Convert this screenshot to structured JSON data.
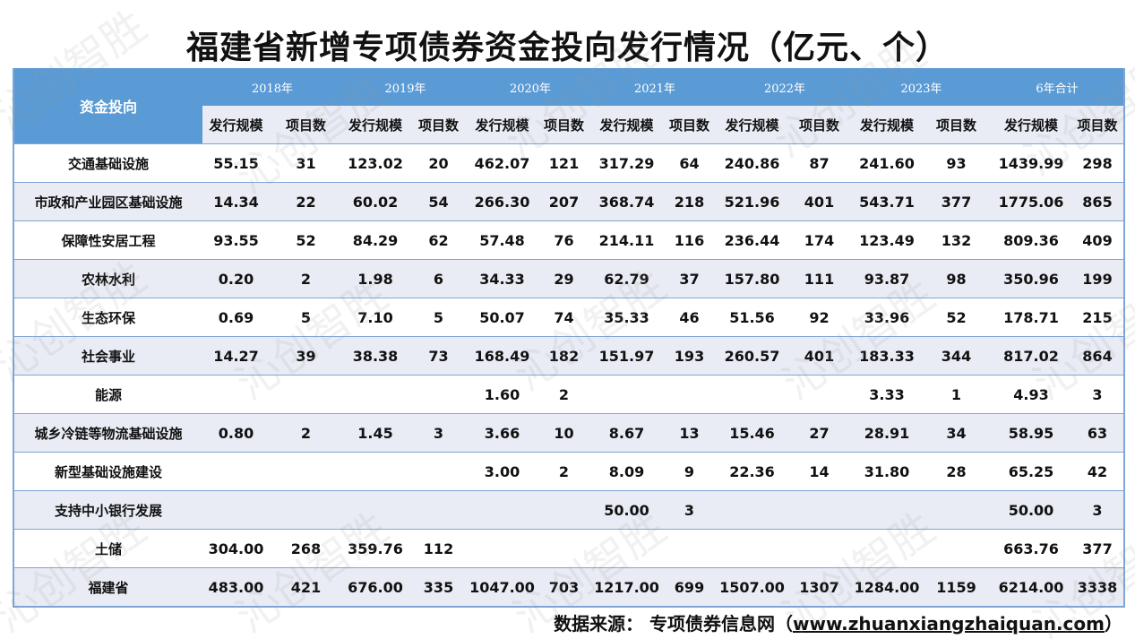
{
  "title": "福建省新增专项债券资金投向发行情况（亿元、个）",
  "header": {
    "category": "资金投向",
    "years": [
      "2018年",
      "2019年",
      "2020年",
      "2021年",
      "2022年",
      "2023年",
      "6年合计"
    ],
    "scale": "发行规模",
    "count": "项目数"
  },
  "rows": [
    {
      "name": "交通基础设施",
      "v": [
        "55.15",
        "31",
        "123.02",
        "20",
        "462.07",
        "121",
        "317.29",
        "64",
        "240.86",
        "87",
        "241.60",
        "93",
        "1439.99",
        "298"
      ]
    },
    {
      "name": "市政和产业园区基础设施",
      "v": [
        "14.34",
        "22",
        "60.02",
        "54",
        "266.30",
        "207",
        "368.74",
        "218",
        "521.96",
        "401",
        "543.71",
        "377",
        "1775.06",
        "865"
      ]
    },
    {
      "name": "保障性安居工程",
      "v": [
        "93.55",
        "52",
        "84.29",
        "62",
        "57.48",
        "76",
        "214.11",
        "116",
        "236.44",
        "174",
        "123.49",
        "132",
        "809.36",
        "409"
      ]
    },
    {
      "name": "农林水利",
      "v": [
        "0.20",
        "2",
        "1.98",
        "6",
        "34.33",
        "29",
        "62.79",
        "37",
        "157.80",
        "111",
        "93.87",
        "98",
        "350.96",
        "199"
      ]
    },
    {
      "name": "生态环保",
      "v": [
        "0.69",
        "5",
        "7.10",
        "5",
        "50.07",
        "74",
        "35.33",
        "46",
        "51.56",
        "92",
        "33.96",
        "52",
        "178.71",
        "215"
      ]
    },
    {
      "name": "社会事业",
      "v": [
        "14.27",
        "39",
        "38.38",
        "73",
        "168.49",
        "182",
        "151.97",
        "193",
        "260.57",
        "401",
        "183.33",
        "344",
        "817.02",
        "864"
      ]
    },
    {
      "name": "能源",
      "v": [
        "",
        "",
        "",
        "",
        "1.60",
        "2",
        "",
        "",
        "",
        "",
        "3.33",
        "1",
        "4.93",
        "3"
      ]
    },
    {
      "name": "城乡冷链等物流基础设施",
      "v": [
        "0.80",
        "2",
        "1.45",
        "3",
        "3.66",
        "10",
        "8.67",
        "13",
        "15.46",
        "27",
        "28.91",
        "34",
        "58.95",
        "63"
      ]
    },
    {
      "name": "新型基础设施建设",
      "v": [
        "",
        "",
        "",
        "",
        "3.00",
        "2",
        "8.09",
        "9",
        "22.36",
        "14",
        "31.80",
        "28",
        "65.25",
        "42"
      ]
    },
    {
      "name": "支持中小银行发展",
      "v": [
        "",
        "",
        "",
        "",
        "",
        "",
        "50.00",
        "3",
        "",
        "",
        "",
        "",
        "50.00",
        "3"
      ]
    },
    {
      "name": "土储",
      "v": [
        "304.00",
        "268",
        "359.76",
        "112",
        "",
        "",
        "",
        "",
        "",
        "",
        "",
        "",
        "663.76",
        "377"
      ]
    },
    {
      "name": "福建省",
      "v": [
        "483.00",
        "421",
        "676.00",
        "335",
        "1047.00",
        "703",
        "1217.00",
        "699",
        "1507.00",
        "1307",
        "1284.00",
        "1159",
        "6214.00",
        "3338"
      ]
    }
  ],
  "source": {
    "label": "数据来源：  专项债券信息网（",
    "url": "www.zhuanxiangzhaiquan.com",
    "end": "）"
  },
  "watermark": "沁创智胜",
  "colors": {
    "header": "#5b9bd5",
    "stripe": "#e9ecf4",
    "border": "#7ea6d6"
  }
}
